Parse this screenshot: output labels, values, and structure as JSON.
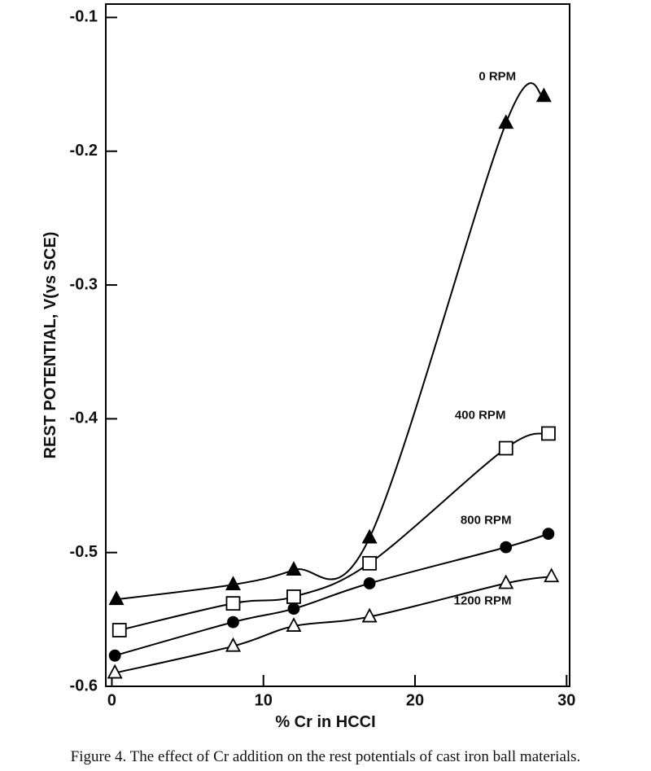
{
  "chart_data": {
    "type": "line",
    "x_label": "% Cr in HCCI",
    "y_label": "REST POTENTIAL, V(vs SCE)",
    "caption": "Figure 4.  The effect of Cr addition on the rest potentials of cast iron ball materials.",
    "xlim": [
      -0.4,
      30.2
    ],
    "ylim": [
      -0.6,
      -0.09
    ],
    "xticks": [
      0,
      10,
      20,
      30
    ],
    "yticks": [
      -0.6,
      -0.5,
      -0.4,
      -0.3,
      -0.2,
      -0.1
    ],
    "series": [
      {
        "name": "0 RPM",
        "color": "#000000",
        "marker": "triangle-filled",
        "x": [
          0.3,
          8,
          12,
          17,
          26,
          28.5
        ],
        "values": [
          -0.535,
          -0.524,
          -0.513,
          -0.489,
          -0.179,
          -0.159
        ]
      },
      {
        "name": "400 RPM",
        "color": "#000000",
        "marker": "square-open",
        "x": [
          0.5,
          8,
          12,
          17,
          26,
          28.8
        ],
        "values": [
          -0.558,
          -0.538,
          -0.533,
          -0.508,
          -0.422,
          -0.411
        ]
      },
      {
        "name": "800 RPM",
        "color": "#000000",
        "marker": "circle-filled",
        "x": [
          0.2,
          8,
          12,
          17,
          26,
          28.8
        ],
        "values": [
          -0.577,
          -0.552,
          -0.542,
          -0.523,
          -0.496,
          -0.486
        ]
      },
      {
        "name": "1200 RPM",
        "color": "#000000",
        "marker": "triangle-open",
        "x": [
          0.2,
          8,
          12,
          17,
          26,
          29
        ],
        "values": [
          -0.59,
          -0.57,
          -0.555,
          -0.548,
          -0.523,
          -0.518
        ]
      }
    ]
  }
}
